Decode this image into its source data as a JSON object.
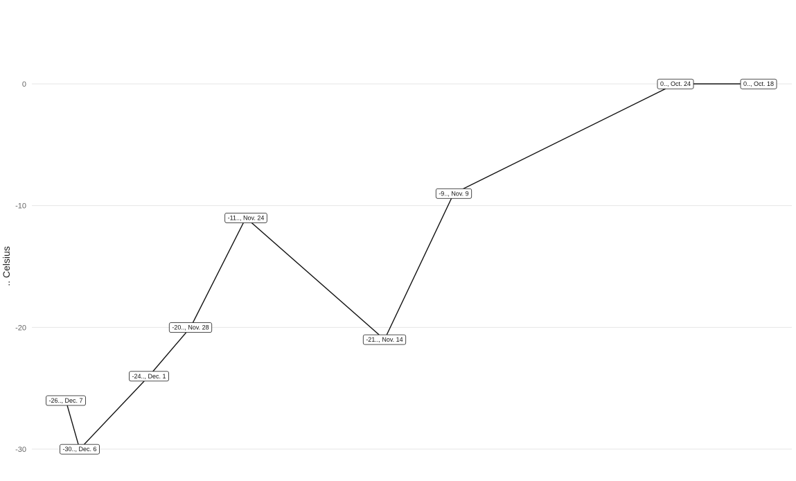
{
  "chart_data": {
    "type": "line",
    "title": "",
    "xlabel": "",
    "ylabel": ".. Celsius",
    "ylim": [
      -30,
      0
    ],
    "y_ticks": [
      0,
      -10,
      -20,
      -30
    ],
    "grid": true,
    "x_order": "descending",
    "points": [
      {
        "date": "Oct. 18",
        "value": 0,
        "label": "0.., Oct. 18"
      },
      {
        "date": "Oct. 24",
        "value": 0,
        "label": "0.., Oct. 24"
      },
      {
        "date": "Nov. 9",
        "value": -9,
        "label": "-9.., Nov. 9"
      },
      {
        "date": "Nov. 14",
        "value": -21,
        "label": "-21.., Nov. 14"
      },
      {
        "date": "Nov. 24",
        "value": -11,
        "label": "-11.., Nov. 24"
      },
      {
        "date": "Nov. 28",
        "value": -20,
        "label": "-20.., Nov. 28"
      },
      {
        "date": "Dec. 1",
        "value": -24,
        "label": "-24.., Dec. 1"
      },
      {
        "date": "Dec. 6",
        "value": -30,
        "label": "-30.., Dec. 6"
      },
      {
        "date": "Dec. 7",
        "value": -26,
        "label": "-26.., Dec. 7"
      }
    ]
  }
}
